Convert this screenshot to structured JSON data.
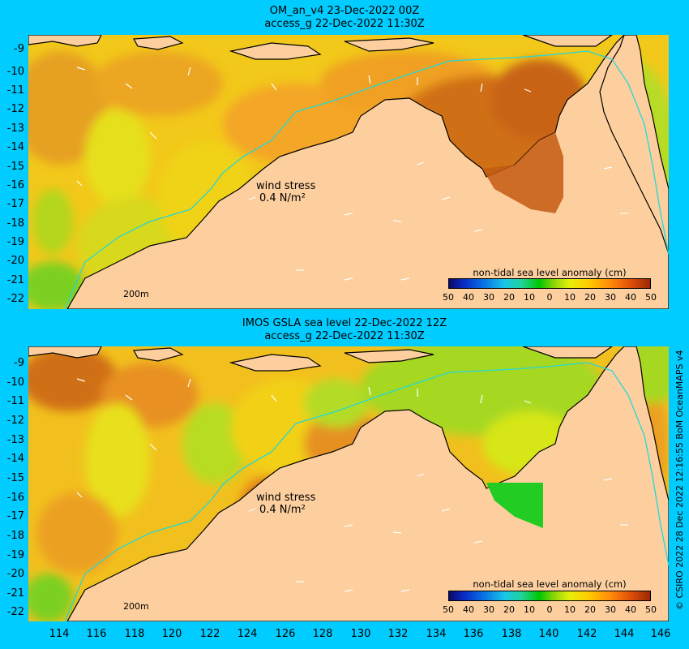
{
  "panels": [
    {
      "title_line1": "OM_an_v4  23-Dec-2022 00Z",
      "title_line2": "access_g 22-Dec-2022 11:30Z",
      "wind_stress_label": "wind stress",
      "wind_stress_value": "0.4 N/m²",
      "isobath_label": "200m",
      "legend_title": "non-tidal sea level anomaly (cm)"
    },
    {
      "title_line1": "IMOS GSLA sea level  22-Dec-2022 12Z",
      "title_line2": "access_g 22-Dec-2022 11:30Z",
      "wind_stress_label": "wind stress",
      "wind_stress_value": "0.4 N/m²",
      "isobath_label": "200m",
      "legend_title": "non-tidal sea level anomaly (cm)"
    }
  ],
  "colorbar_ticks": [
    "50",
    "40",
    "30",
    "20",
    "10",
    "0",
    "10",
    "20",
    "30",
    "40",
    "50"
  ],
  "latitude_labels": [
    "-9",
    "-10",
    "-11",
    "-12",
    "-13",
    "-14",
    "-15",
    "-16",
    "-17",
    "-18",
    "-19",
    "-20",
    "-21",
    "-22"
  ],
  "longitude_labels": [
    "114",
    "116",
    "118",
    "120",
    "122",
    "124",
    "126",
    "128",
    "130",
    "132",
    "134",
    "136",
    "138",
    "140",
    "142",
    "144",
    "146"
  ],
  "credit": "© CSIRO 2022   28 Dec 2022 12:16:55 BoM OceanMAPS v4",
  "colors": {
    "background": "#00ccff",
    "land": "#fdcf9e",
    "isobath": "#22d8d8",
    "coast": "#000000"
  }
}
